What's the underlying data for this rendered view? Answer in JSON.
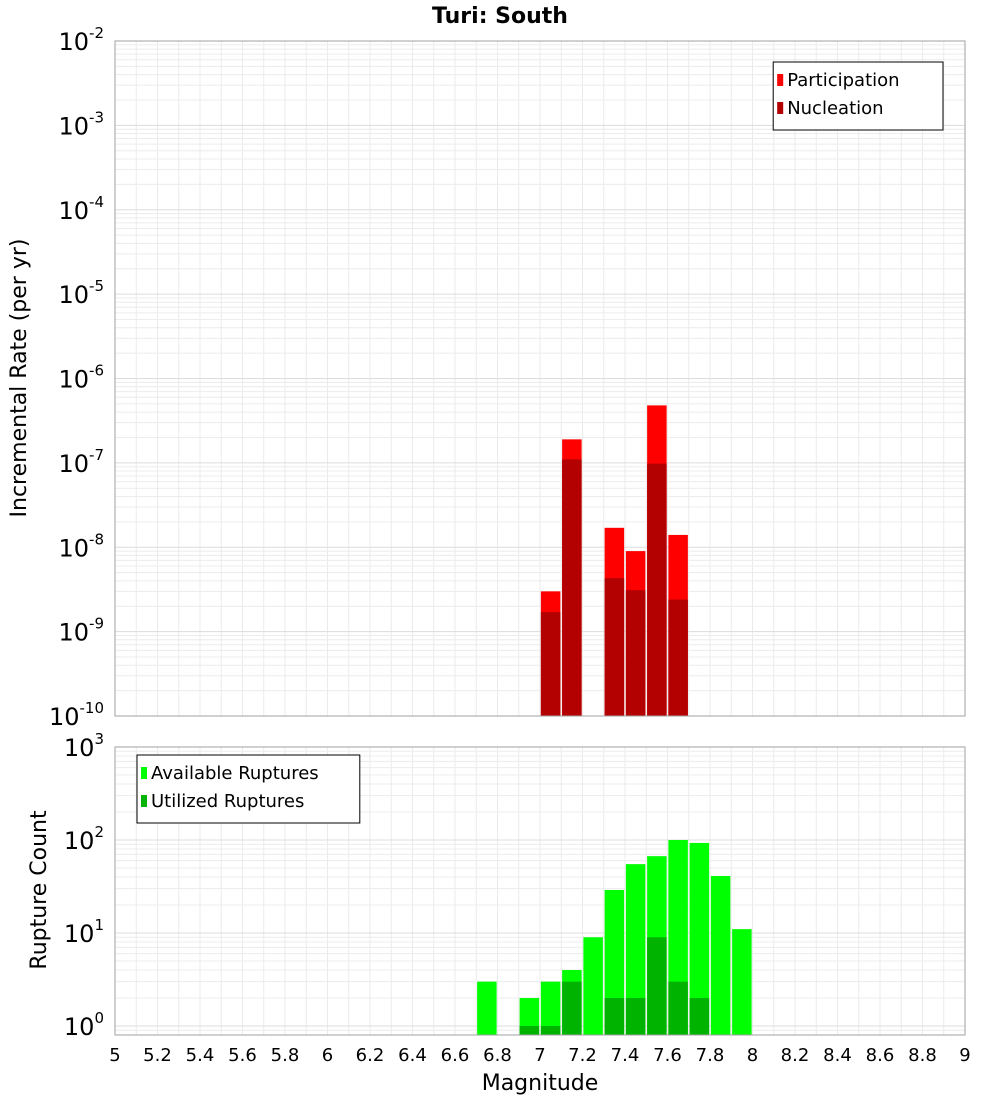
{
  "chart_data": [
    {
      "type": "bar",
      "title": "Turi: South",
      "xlabel": "",
      "ylabel": "Incremental Rate (per yr)",
      "xlim": [
        5,
        9
      ],
      "ylim": [
        1e-10,
        0.01
      ],
      "yscale": "log",
      "grid": true,
      "legend_position": "top-right",
      "series": [
        {
          "name": "Participation",
          "color": "#ff0000",
          "x": [
            7.05,
            7.15,
            7.35,
            7.45,
            7.55,
            7.65
          ],
          "values": [
            3e-09,
            1.9e-07,
            1.7e-08,
            9e-09,
            4.8e-07,
            1.4e-08
          ]
        },
        {
          "name": "Nucleation",
          "color": "#b30000",
          "x": [
            7.05,
            7.15,
            7.35,
            7.45,
            7.55,
            7.65
          ],
          "values": [
            1.7e-09,
            1.1e-07,
            4.3e-09,
            3.1e-09,
            9.8e-08,
            2.4e-09
          ]
        }
      ],
      "y_ticks": [
        {
          "base": "10",
          "exp": "-10"
        },
        {
          "base": "10",
          "exp": "-9"
        },
        {
          "base": "10",
          "exp": "-8"
        },
        {
          "base": "10",
          "exp": "-7"
        },
        {
          "base": "10",
          "exp": "-6"
        },
        {
          "base": "10",
          "exp": "-5"
        },
        {
          "base": "10",
          "exp": "-4"
        },
        {
          "base": "10",
          "exp": "-3"
        },
        {
          "base": "10",
          "exp": "-2"
        }
      ]
    },
    {
      "type": "bar",
      "title": "",
      "xlabel": "Magnitude",
      "ylabel": "Rupture Count",
      "xlim": [
        5,
        9
      ],
      "ylim": [
        0.8,
        1000
      ],
      "yscale": "log",
      "grid": true,
      "legend_position": "top-left",
      "x_ticks": [
        "5",
        "5.2",
        "5.4",
        "5.6",
        "5.8",
        "6",
        "6.2",
        "6.4",
        "6.6",
        "6.8",
        "7",
        "7.2",
        "7.4",
        "7.6",
        "7.8",
        "8",
        "8.2",
        "8.4",
        "8.6",
        "8.8",
        "9"
      ],
      "series": [
        {
          "name": "Available Ruptures",
          "color": "#00ff00",
          "x": [
            6.75,
            6.95,
            7.05,
            7.15,
            7.25,
            7.35,
            7.45,
            7.55,
            7.65,
            7.75,
            7.85,
            7.95
          ],
          "values": [
            3,
            2,
            3,
            4,
            9,
            29,
            55,
            67,
            100,
            93,
            41,
            11
          ]
        },
        {
          "name": "Utilized Ruptures",
          "color": "#00b300",
          "x": [
            6.95,
            7.05,
            7.15,
            7.35,
            7.45,
            7.55,
            7.65,
            7.75
          ],
          "values": [
            1,
            1,
            3,
            2,
            2,
            9,
            3,
            2
          ]
        }
      ],
      "y_ticks": [
        {
          "base": "10",
          "exp": "0"
        },
        {
          "base": "10",
          "exp": "1"
        },
        {
          "base": "10",
          "exp": "2"
        },
        {
          "base": "10",
          "exp": "3"
        }
      ]
    }
  ]
}
